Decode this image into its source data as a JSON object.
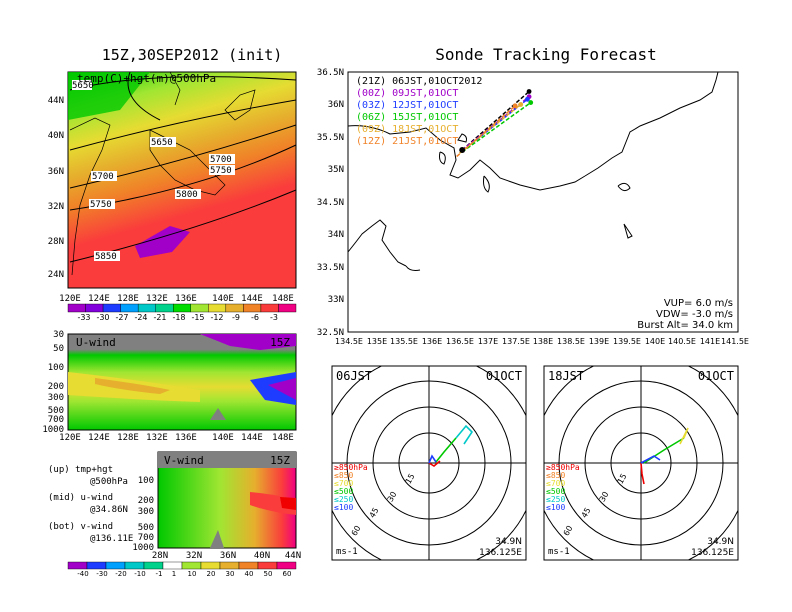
{
  "titles": {
    "left": "15Z,30SEP2012 (init)",
    "right": "Sonde Tracking Forecast"
  },
  "map500": {
    "label": "temp(C)+hgt(m)@500hPa",
    "lat_ticks": [
      "44N",
      "40N",
      "36N",
      "32N",
      "28N",
      "24N"
    ],
    "lon_ticks": [
      "120E",
      "124E",
      "128E",
      "132E",
      "136E",
      "140E",
      "144E",
      "148E"
    ],
    "contour_labels": [
      "5650",
      "5650",
      "5700",
      "5700",
      "5750",
      "5750",
      "5800",
      "5850"
    ],
    "colorbar_ticks": [
      "-33",
      "-30",
      "-27",
      "-24",
      "-21",
      "-18",
      "-15",
      "-12",
      "-9",
      "-6",
      "-3"
    ],
    "colorbar_colors": [
      "#a000c8",
      "#8200dc",
      "#1e3cff",
      "#00a0ff",
      "#00c8c8",
      "#00d28c",
      "#00dc00",
      "#a0e632",
      "#e6dc32",
      "#e6af2d",
      "#f08228",
      "#fa3c3c",
      "#f00082"
    ]
  },
  "uwind": {
    "label": "U-wind",
    "time": "15Z",
    "p_ticks": [
      "30",
      "50",
      "100",
      "200",
      "300",
      "500",
      "700",
      "1000"
    ],
    "lon_ticks": [
      "120E",
      "124E",
      "128E",
      "132E",
      "136E",
      "140E",
      "144E",
      "148E"
    ]
  },
  "vwind": {
    "label": "V-wind",
    "time": "15Z",
    "p_ticks": [
      "100",
      "200",
      "300",
      "500",
      "700",
      "1000"
    ],
    "lat_ticks": [
      "28N",
      "32N",
      "36N",
      "40N",
      "44N"
    ]
  },
  "legend_text": {
    "up": "(up) tmp+hgt",
    "up2": "@500hPa",
    "mid": "(mid) u-wind",
    "mid2": "@34.86N",
    "bot": "(bot) v-wind",
    "bot2": "@136.11E"
  },
  "wind_colorbar": {
    "ticks": [
      "-40",
      "-30",
      "-20",
      "-10",
      "-1",
      "1",
      "10",
      "20",
      "30",
      "40",
      "50",
      "60"
    ],
    "colors": [
      "#a000c8",
      "#1e3cff",
      "#00a0ff",
      "#00c8c8",
      "#00d28c",
      "#ffffff",
      "#a0e632",
      "#e6dc32",
      "#e6af2d",
      "#f08228",
      "#fa3c3c",
      "#f00082"
    ]
  },
  "track_map": {
    "lat_ticks": [
      "36.5N",
      "36N",
      "35.5N",
      "35N",
      "34.5N",
      "34N",
      "33.5N",
      "33N",
      "32.5N"
    ],
    "lon_ticks": [
      "134.5E",
      "135E",
      "135.5E",
      "136E",
      "136.5E",
      "137E",
      "137.5E",
      "138E",
      "138.5E",
      "139E",
      "139.5E",
      "140E",
      "140.5E",
      "141E",
      "141.5E"
    ],
    "launches": [
      {
        "label": "(21Z)  06JST,01OCT2012",
        "color": "#000000"
      },
      {
        "label": "(00Z)  09JST,01OCT",
        "color": "#a000c8"
      },
      {
        "label": "(03Z)  12JST,01OCT",
        "color": "#1e3cff"
      },
      {
        "label": "(06Z)  15JST,01OCT",
        "color": "#00c800"
      },
      {
        "label": "(09Z)  18JST,01OCT",
        "color": "#e6af2d"
      },
      {
        "label": "(12Z)  21JST,01OCT",
        "color": "#f08228"
      }
    ],
    "params": [
      "VUP=  6.0  m/s",
      "VDW= -3.0  m/s",
      "Burst Alt=  34.0  km"
    ]
  },
  "hodographs": [
    {
      "time": "06JST",
      "date": "01OCT",
      "lat": "34.9N",
      "lon": "136.125E",
      "unit": "ms-1"
    },
    {
      "time": "18JST",
      "date": "01OCT",
      "lat": "34.9N",
      "lon": "136.125E",
      "unit": "ms-1"
    }
  ],
  "hodo_rings": [
    "15",
    "30",
    "45",
    "60"
  ],
  "hodo_levels": [
    {
      "label": "≥850hPa",
      "color": "#f00000"
    },
    {
      "label": "≤850",
      "color": "#f08228"
    },
    {
      "label": "≤700",
      "color": "#e6dc32"
    },
    {
      "label": "≤500",
      "color": "#00c800"
    },
    {
      "label": "≤250",
      "color": "#00c8c8"
    },
    {
      "label": "≤100",
      "color": "#1e3cff"
    }
  ],
  "chart_data": [
    {
      "type": "heatmap",
      "title": "15Z,30SEP2012 (init)",
      "subtitle": "temp(C)+hgt(m)@500hPa",
      "xlim": [
        120,
        150
      ],
      "ylim": [
        22,
        47
      ],
      "contours_m": [
        5650,
        5700,
        5750,
        5800,
        5850
      ]
    },
    {
      "type": "line",
      "title": "Sonde Tracking Forecast",
      "xlim": [
        134.5,
        141.5
      ],
      "ylim": [
        32.5,
        36.5
      ],
      "series": [
        {
          "name": "(21Z)  06JST,01OCT2012",
          "x": [
            136.55,
            137.75
          ],
          "y": [
            35.3,
            36.2
          ]
        },
        {
          "name": "(00Z)  09JST,01OCT",
          "x": [
            136.55,
            137.75
          ],
          "y": [
            35.3,
            36.12
          ]
        },
        {
          "name": "(03Z)  12JST,01OCT",
          "x": [
            136.55,
            137.72
          ],
          "y": [
            35.28,
            36.08
          ]
        },
        {
          "name": "(06Z)  15JST,01OCT",
          "x": [
            136.55,
            137.78
          ],
          "y": [
            35.27,
            36.03
          ]
        },
        {
          "name": "(09Z)  18JST,01OCT",
          "x": [
            136.5,
            137.6
          ],
          "y": [
            35.25,
            36.0
          ]
        },
        {
          "name": "(12Z)  21JST,01OCT",
          "x": [
            136.45,
            137.5
          ],
          "y": [
            35.2,
            35.98
          ]
        }
      ]
    }
  ]
}
